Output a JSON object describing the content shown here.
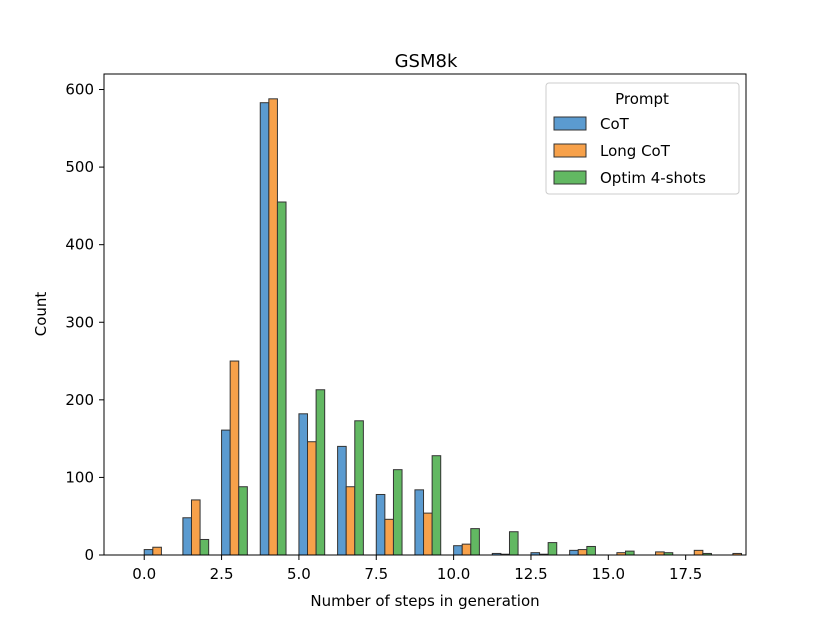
{
  "chart_data": {
    "type": "bar",
    "title": "GSM8k",
    "xlabel": "Number of steps in generation",
    "ylabel": "Count",
    "xlim": [
      -1.3,
      19.45
    ],
    "ylim": [
      0,
      620
    ],
    "x_ticks": [
      0.0,
      2.5,
      5.0,
      7.5,
      10.0,
      12.5,
      15.0,
      17.5
    ],
    "x_tick_labels": [
      "0.0",
      "2.5",
      "5.0",
      "7.5",
      "10.0",
      "12.5",
      "15.0",
      "17.5"
    ],
    "y_ticks": [
      0,
      100,
      200,
      300,
      400,
      500,
      600
    ],
    "y_tick_labels": [
      "0",
      "100",
      "200",
      "300",
      "400",
      "500",
      "600"
    ],
    "bin_width": 0.833,
    "bin_starts": [
      0,
      1.25,
      2.5,
      3.75,
      5,
      6.25,
      7.5,
      8.75,
      10,
      11.25,
      12.5,
      13.75,
      15,
      16.25,
      17.5,
      18.75
    ],
    "legend_title": "Prompt",
    "legend_position": "top-right",
    "series": [
      {
        "name": "CoT",
        "color": "#5b9bd0",
        "values": [
          7,
          48,
          161,
          583,
          182,
          140,
          78,
          84,
          12,
          2,
          3,
          6,
          0,
          0,
          0,
          0
        ]
      },
      {
        "name": "Long CoT",
        "color": "#f7a14a",
        "values": [
          10,
          71,
          250,
          588,
          146,
          88,
          46,
          54,
          14,
          1,
          1,
          7,
          3,
          4,
          6,
          2
        ]
      },
      {
        "name": "Optim 4-shots",
        "color": "#62b862",
        "values": [
          0,
          20,
          88,
          455,
          213,
          173,
          110,
          128,
          34,
          30,
          16,
          11,
          5,
          3,
          2,
          0
        ]
      }
    ]
  }
}
